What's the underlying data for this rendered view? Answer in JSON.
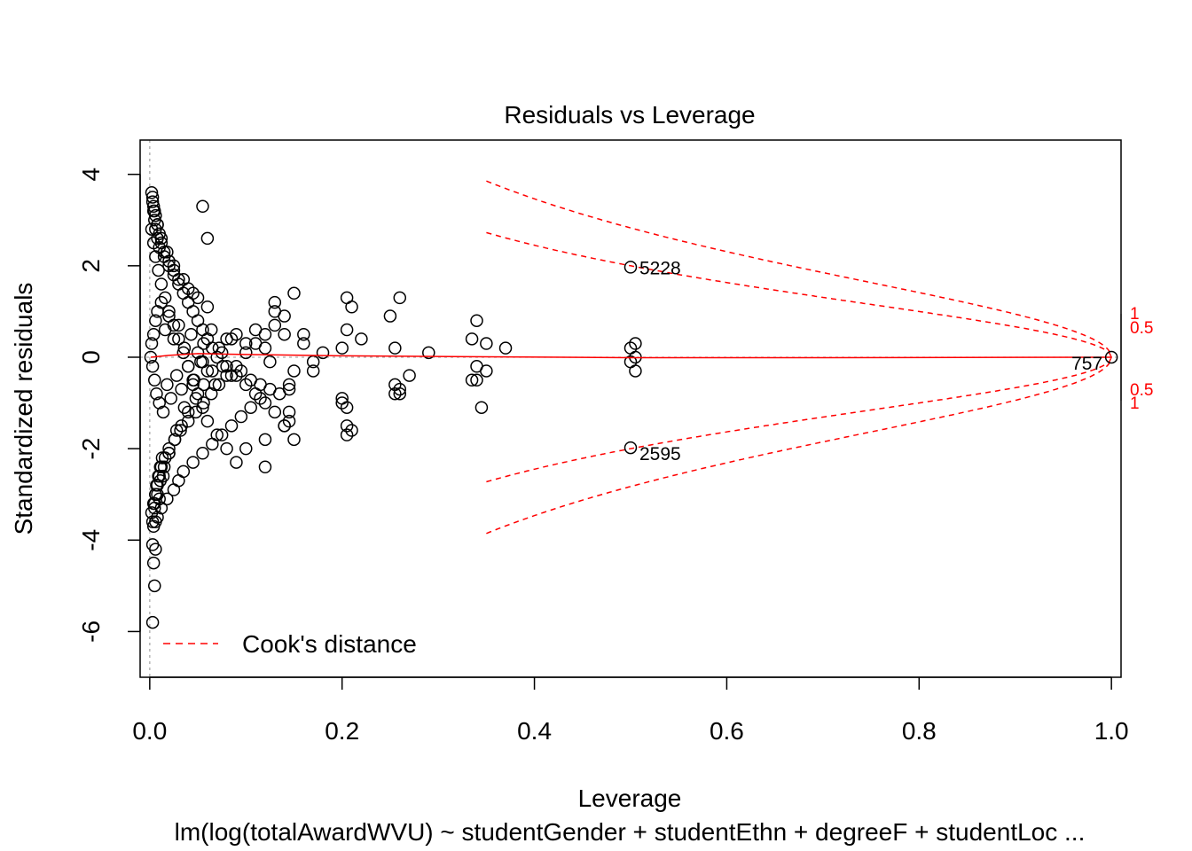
{
  "chart_data": {
    "type": "scatter",
    "title": "Residuals vs Leverage",
    "xlabel": "Leverage",
    "ylabel": "Standardized residuals",
    "subtitle": "lm(log(totalAwardWVU) ~ studentGender + studentEthn + degreeF + studentLoc  ...",
    "xlim": [
      -0.01,
      1.01
    ],
    "ylim": [
      -7.0,
      4.75
    ],
    "x_ticks": [
      0.0,
      0.2,
      0.4,
      0.6,
      0.8,
      1.0
    ],
    "x_tick_labels": [
      "0.0",
      "0.2",
      "0.4",
      "0.6",
      "0.8",
      "1.0"
    ],
    "y_ticks": [
      -6,
      -4,
      -2,
      0,
      2,
      4
    ],
    "y_tick_labels": [
      "-6",
      "-4",
      "-2",
      "0",
      "2",
      "4"
    ],
    "legend": {
      "label": "Cook's distance",
      "position": "bottom-left",
      "color": "#ff0000"
    },
    "point_color": "#000000",
    "smooth_color": "#ff0000",
    "reference_line_color": "#aaaaaa",
    "cook_levels": [
      0.5,
      1
    ],
    "cook_label_left": [
      "0.5",
      "1",
      "0.5",
      "1"
    ],
    "labeled_points": [
      {
        "x": 0.5,
        "y": 1.97,
        "label": "5228"
      },
      {
        "x": 0.5,
        "y": -1.98,
        "label": "2595"
      },
      {
        "x": 1.0,
        "y": 0.0,
        "label": "757"
      }
    ],
    "points_x": [
      0.001,
      0.002,
      0.003,
      0.004,
      0.005,
      0.006,
      0.007,
      0.008,
      0.01,
      0.012,
      0.014,
      0.016,
      0.018,
      0.02,
      0.022,
      0.025,
      0.028,
      0.03,
      0.033,
      0.036,
      0.04,
      0.043,
      0.046,
      0.05,
      0.053,
      0.056,
      0.06,
      0.064,
      0.068,
      0.072,
      0.076,
      0.08,
      0.085,
      0.09,
      0.095,
      0.1,
      0.105,
      0.11,
      0.115,
      0.12,
      0.125,
      0.13,
      0.135,
      0.14,
      0.145,
      0.15,
      0.16,
      0.17,
      0.18,
      0.2,
      0.205,
      0.21,
      0.22,
      0.25,
      0.255,
      0.26,
      0.27,
      0.29,
      0.335,
      0.34,
      0.345,
      0.35,
      0.37,
      0.5,
      0.505,
      0.003,
      0.004,
      0.006,
      0.008,
      0.01,
      0.012,
      0.015,
      0.02,
      0.025,
      0.03,
      0.04,
      0.05,
      0.06,
      0.005,
      0.006,
      0.007,
      0.009,
      0.011,
      0.013,
      0.004,
      0.005,
      0.006,
      0.003,
      0.004,
      0.008,
      0.012,
      0.018,
      0.025,
      0.03,
      0.035,
      0.045,
      0.055,
      0.065,
      0.075,
      0.085,
      0.095,
      0.105,
      0.115,
      0.125,
      0.13,
      0.14,
      0.145,
      0.15,
      0.2,
      0.205,
      0.255,
      0.26,
      0.335,
      0.34,
      0.5,
      0.505,
      0.002,
      0.003,
      0.004,
      0.005,
      0.006,
      0.008,
      0.01,
      0.015,
      0.02,
      0.025,
      0.03,
      0.035,
      0.04,
      0.045,
      0.05,
      0.055,
      0.06,
      0.065,
      0.07,
      0.08,
      0.09,
      0.1,
      0.11,
      0.12,
      0.13,
      0.145,
      0.15,
      0.205,
      0.21,
      0.26,
      0.34,
      0.35,
      0.505,
      0.002,
      0.004,
      0.006,
      0.008,
      0.01,
      0.012,
      0.016,
      0.02,
      0.026,
      0.032,
      0.04,
      0.048,
      0.056,
      0.064,
      0.072,
      0.08,
      0.09,
      0.1,
      0.11,
      0.12,
      0.13,
      0.14,
      0.145,
      0.2,
      0.205,
      0.255,
      0.002,
      0.004,
      0.006,
      0.009,
      0.012,
      0.016,
      0.02,
      0.025,
      0.03,
      0.035,
      0.04,
      0.045,
      0.05,
      0.055,
      0.06,
      0.07,
      0.08,
      0.09,
      0.1,
      0.12,
      0.14,
      0.16,
      0.17,
      0.205,
      0.003,
      0.005,
      0.008,
      0.011,
      0.015,
      0.02,
      0.026,
      0.033,
      0.04,
      0.048,
      0.056,
      0.065,
      0.075,
      0.085,
      0.12,
      0.003,
      0.006,
      0.01,
      0.014,
      0.02,
      0.028,
      0.036,
      0.045,
      0.055,
      0.005,
      0.008,
      0.012,
      0.018,
      0.025,
      0.035,
      0.045,
      0.055,
      0.06
    ],
    "points_y": [
      0.0,
      0.3,
      -0.2,
      0.5,
      -0.5,
      0.8,
      -0.8,
      1.0,
      -1.0,
      1.2,
      -1.2,
      0.6,
      -0.6,
      0.9,
      -0.9,
      0.4,
      -0.4,
      0.7,
      -0.7,
      0.2,
      -0.2,
      0.5,
      -0.5,
      0.1,
      -0.1,
      0.3,
      -0.3,
      0.6,
      -0.6,
      0.2,
      -0.2,
      0.4,
      -0.4,
      0.5,
      -0.3,
      0.3,
      -0.5,
      0.6,
      -0.6,
      0.2,
      -0.1,
      1.2,
      -0.8,
      0.5,
      -0.7,
      1.4,
      0.3,
      -0.3,
      0.1,
      0.2,
      0.6,
      1.1,
      0.4,
      0.9,
      0.2,
      1.3,
      -0.4,
      0.1,
      0.4,
      0.8,
      -1.1,
      0.3,
      0.2,
      0.2,
      0.3,
      3.5,
      3.3,
      3.1,
      2.9,
      2.7,
      2.5,
      2.3,
      2.1,
      1.9,
      1.7,
      1.5,
      1.3,
      1.1,
      -3.2,
      -3.0,
      -2.8,
      -2.6,
      -2.4,
      -2.2,
      -4.5,
      -5.0,
      -4.2,
      -5.8,
      -3.7,
      -3.5,
      -3.3,
      -3.1,
      -2.9,
      -2.7,
      -2.5,
      -2.3,
      -2.1,
      -1.9,
      -1.7,
      -1.5,
      -1.3,
      -1.1,
      -0.9,
      -0.7,
      1.0,
      -1.5,
      -1.2,
      -1.8,
      -1.0,
      -1.5,
      -0.6,
      -0.8,
      -0.5,
      -0.2,
      -0.1,
      0.0,
      3.6,
      3.4,
      3.2,
      3.0,
      2.8,
      2.6,
      2.4,
      2.2,
      2.0,
      1.8,
      1.6,
      1.4,
      1.2,
      1.0,
      0.8,
      0.6,
      0.4,
      0.2,
      0.0,
      -0.2,
      -0.4,
      -0.6,
      -0.8,
      -1.0,
      -1.2,
      -1.4,
      -0.3,
      -1.7,
      -1.6,
      -0.7,
      -0.5,
      -0.3,
      -0.3,
      -3.4,
      -3.2,
      -3.0,
      -2.8,
      -2.6,
      -2.4,
      -2.2,
      -2.0,
      -1.8,
      -1.6,
      -1.4,
      -1.2,
      -1.0,
      -0.8,
      -0.6,
      -0.4,
      -0.2,
      0.1,
      0.3,
      0.5,
      0.7,
      0.9,
      -0.6,
      -0.9,
      -1.1,
      -0.8,
      2.8,
      2.5,
      2.2,
      1.9,
      1.6,
      1.3,
      1.0,
      0.7,
      0.4,
      0.1,
      -0.2,
      -0.5,
      -0.8,
      -1.1,
      -1.4,
      -1.7,
      -2.0,
      -2.3,
      -2.0,
      -1.8,
      -1.5,
      0.5,
      -0.1,
      1.3,
      -3.6,
      -3.3,
      -3.0,
      -2.7,
      -2.4,
      -2.1,
      -1.8,
      -1.5,
      -1.2,
      -0.9,
      -0.6,
      -0.3,
      0.1,
      0.4,
      -2.4,
      -4.1,
      -3.6,
      -3.1,
      -2.6,
      -2.1,
      -1.6,
      -1.1,
      -0.6,
      -0.1,
      3.2,
      2.9,
      2.6,
      2.3,
      2.0,
      1.7,
      1.4,
      3.3,
      2.6
    ]
  }
}
